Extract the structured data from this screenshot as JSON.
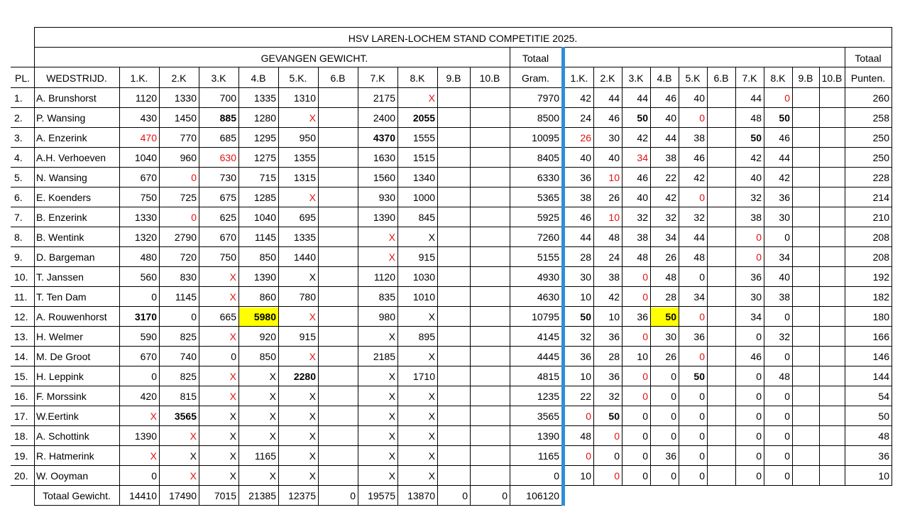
{
  "title": "HSV LAREN-LOCHEM STAND COMPETITIE 2025.",
  "headers": {
    "gevangen": "GEVANGEN GEWICHT.",
    "totaal_top_left": "Totaal",
    "totaal_top_right": "Totaal",
    "pl": "PL.",
    "wedstrijd": "WEDSTRIJD.",
    "weight_cols": [
      "1.K.",
      "2.K",
      "3.K",
      "4.B",
      "5.K.",
      "6.B",
      "7.K",
      "8.K",
      "9.B",
      "10.B"
    ],
    "gram": "Gram.",
    "point_cols": [
      "1.K.",
      "2.K",
      "3.K",
      "4.B",
      "5.K",
      "6.B",
      "7.K",
      "8.K",
      "9.B",
      "10.B"
    ],
    "punten": "Punten."
  },
  "rows": [
    {
      "pl": "1.",
      "name": "A. Brunshorst",
      "w": [
        "1120",
        "1330",
        "700",
        "1335",
        "1310",
        "",
        "2175",
        "X",
        "",
        ""
      ],
      "total": "7970",
      "p": [
        "42",
        "44",
        "44",
        "46",
        "40",
        "",
        "44",
        "0",
        "",
        ""
      ],
      "punten": "260"
    },
    {
      "pl": "2.",
      "name": "P. Wansing",
      "w": [
        "430",
        "1450",
        "885",
        "1280",
        "X",
        "",
        "2400",
        "2055",
        "",
        ""
      ],
      "total": "8500",
      "p": [
        "24",
        "46",
        "50",
        "40",
        "0",
        "",
        "48",
        "50",
        "",
        ""
      ],
      "punten": "258"
    },
    {
      "pl": "3.",
      "name": "A. Enzerink",
      "w": [
        "470",
        "770",
        "685",
        "1295",
        "950",
        "",
        "4370",
        "1555",
        "",
        ""
      ],
      "total": "10095",
      "p": [
        "26",
        "30",
        "42",
        "44",
        "38",
        "",
        "50",
        "46",
        "",
        ""
      ],
      "punten": "250"
    },
    {
      "pl": "4.",
      "name": "A.H. Verhoeven",
      "w": [
        "1040",
        "960",
        "630",
        "1275",
        "1355",
        "",
        "1630",
        "1515",
        "",
        ""
      ],
      "total": "8405",
      "p": [
        "40",
        "40",
        "34",
        "38",
        "46",
        "",
        "42",
        "44",
        "",
        ""
      ],
      "punten": "250"
    },
    {
      "pl": "5.",
      "name": "N. Wansing",
      "w": [
        "670",
        "0",
        "730",
        "715",
        "1315",
        "",
        "1560",
        "1340",
        "",
        ""
      ],
      "total": "6330",
      "p": [
        "36",
        "10",
        "46",
        "22",
        "42",
        "",
        "40",
        "42",
        "",
        ""
      ],
      "punten": "228"
    },
    {
      "pl": "6.",
      "name": "E. Koenders",
      "w": [
        "750",
        "725",
        "675",
        "1285",
        "X",
        "",
        "930",
        "1000",
        "",
        ""
      ],
      "total": "5365",
      "p": [
        "38",
        "26",
        "40",
        "42",
        "0",
        "",
        "32",
        "36",
        "",
        ""
      ],
      "punten": "214"
    },
    {
      "pl": "7.",
      "name": "B. Enzerink",
      "w": [
        "1330",
        "0",
        "625",
        "1040",
        "695",
        "",
        "1390",
        "845",
        "",
        ""
      ],
      "total": "5925",
      "p": [
        "46",
        "10",
        "32",
        "32",
        "32",
        "",
        "38",
        "30",
        "",
        ""
      ],
      "punten": "210"
    },
    {
      "pl": "8.",
      "name": "B. Wentink",
      "w": [
        "1320",
        "2790",
        "670",
        "1145",
        "1335",
        "",
        "X",
        "X",
        "",
        ""
      ],
      "total": "7260",
      "p": [
        "44",
        "48",
        "38",
        "34",
        "44",
        "",
        "0",
        "0",
        "",
        ""
      ],
      "punten": "208"
    },
    {
      "pl": "9.",
      "name": "D. Bargeman",
      "w": [
        "480",
        "720",
        "750",
        "850",
        "1440",
        "",
        "X",
        "915",
        "",
        ""
      ],
      "total": "5155",
      "p": [
        "28",
        "24",
        "48",
        "26",
        "48",
        "",
        "0",
        "34",
        "",
        ""
      ],
      "punten": "208"
    },
    {
      "pl": "10.",
      "name": "T. Janssen",
      "w": [
        "560",
        "830",
        "X",
        "1390",
        "X",
        "",
        "1120",
        "1030",
        "",
        ""
      ],
      "total": "4930",
      "p": [
        "30",
        "38",
        "0",
        "48",
        "0",
        "",
        "36",
        "40",
        "",
        ""
      ],
      "punten": "192"
    },
    {
      "pl": "11.",
      "name": "T. Ten Dam",
      "w": [
        "0",
        "1145",
        "X",
        "860",
        "780",
        "",
        "835",
        "1010",
        "",
        ""
      ],
      "total": "4630",
      "p": [
        "10",
        "42",
        "0",
        "28",
        "34",
        "",
        "30",
        "38",
        "",
        ""
      ],
      "punten": "182"
    },
    {
      "pl": "12.",
      "name": "A. Rouwenhorst",
      "w": [
        "3170",
        "0",
        "665",
        "5980",
        "X",
        "",
        "980",
        "X",
        "",
        ""
      ],
      "total": "10795",
      "p": [
        "50",
        "10",
        "36",
        "50",
        "0",
        "",
        "34",
        "0",
        "",
        ""
      ],
      "punten": "180"
    },
    {
      "pl": "13.",
      "name": "H. Welmer",
      "w": [
        "590",
        "825",
        "X",
        "920",
        "915",
        "",
        "X",
        "895",
        "",
        ""
      ],
      "total": "4145",
      "p": [
        "32",
        "36",
        "0",
        "30",
        "36",
        "",
        "0",
        "32",
        "",
        ""
      ],
      "punten": "166"
    },
    {
      "pl": "14.",
      "name": "M. De Groot",
      "w": [
        "670",
        "740",
        "0",
        "850",
        "X",
        "",
        "2185",
        "X",
        "",
        ""
      ],
      "total": "4445",
      "p": [
        "36",
        "28",
        "10",
        "26",
        "0",
        "",
        "46",
        "0",
        "",
        ""
      ],
      "punten": "146"
    },
    {
      "pl": "15.",
      "name": "H. Leppink",
      "w": [
        "0",
        "825",
        "X",
        "X",
        "2280",
        "",
        "X",
        "1710",
        "",
        ""
      ],
      "total": "4815",
      "p": [
        "10",
        "36",
        "0",
        "0",
        "50",
        "",
        "0",
        "48",
        "",
        ""
      ],
      "punten": "144"
    },
    {
      "pl": "16.",
      "name": "F. Morssink",
      "w": [
        "420",
        "815",
        "X",
        "X",
        "X",
        "",
        "X",
        "X",
        "",
        ""
      ],
      "total": "1235",
      "p": [
        "22",
        "32",
        "0",
        "0",
        "0",
        "",
        "0",
        "0",
        "",
        ""
      ],
      "punten": "54"
    },
    {
      "pl": "17.",
      "name": "W.Eertink",
      "w": [
        "X",
        "3565",
        "X",
        "X",
        "X",
        "",
        "X",
        "X",
        "",
        ""
      ],
      "total": "3565",
      "p": [
        "0",
        "50",
        "0",
        "0",
        "0",
        "",
        "0",
        "0",
        "",
        ""
      ],
      "punten": "50"
    },
    {
      "pl": "18.",
      "name": "A. Schottink",
      "w": [
        "1390",
        "X",
        "X",
        "X",
        "X",
        "",
        "X",
        "X",
        "",
        ""
      ],
      "total": "1390",
      "p": [
        "48",
        "0",
        "0",
        "0",
        "0",
        "",
        "0",
        "0",
        "",
        ""
      ],
      "punten": "48"
    },
    {
      "pl": "19.",
      "name": "R. Hatmerink",
      "w": [
        "X",
        "X",
        "X",
        "1165",
        "X",
        "",
        "X",
        "X",
        "",
        ""
      ],
      "total": "1165",
      "p": [
        "0",
        "0",
        "0",
        "36",
        "0",
        "",
        "0",
        "0",
        "",
        ""
      ],
      "punten": "36"
    },
    {
      "pl": "20.",
      "name": "W. Ooyman",
      "w": [
        "0",
        "X",
        "X",
        "X",
        "X",
        "",
        "X",
        "X",
        "",
        ""
      ],
      "total": "0",
      "p": [
        "10",
        "0",
        "0",
        "0",
        "0",
        "",
        "0",
        "0",
        "",
        ""
      ],
      "punten": "10"
    }
  ],
  "totals": {
    "label": "Totaal Gewicht.",
    "values": [
      "14410",
      "17490",
      "7015",
      "21385",
      "12375",
      "0",
      "19575",
      "13870",
      "0",
      "0"
    ],
    "grand": "106120"
  },
  "styles": {
    "red_color": "#e01010",
    "highlight_color": "#ffff00",
    "divider_color": "#2e8fd6",
    "red_weight": [
      [
        0,
        7
      ],
      [
        1,
        4
      ],
      [
        2,
        0
      ],
      [
        3,
        2
      ],
      [
        4,
        1
      ],
      [
        5,
        4
      ],
      [
        6,
        1
      ],
      [
        7,
        6
      ],
      [
        8,
        6
      ],
      [
        9,
        2
      ],
      [
        10,
        2
      ],
      [
        11,
        4
      ],
      [
        12,
        2
      ],
      [
        13,
        4
      ],
      [
        14,
        2
      ],
      [
        15,
        2
      ],
      [
        16,
        0
      ],
      [
        17,
        1
      ],
      [
        18,
        0
      ],
      [
        19,
        1
      ]
    ],
    "bold_weight": [
      [
        1,
        2
      ],
      [
        1,
        7
      ],
      [
        2,
        6
      ],
      [
        11,
        0
      ],
      [
        11,
        3
      ],
      [
        14,
        4
      ],
      [
        16,
        1
      ]
    ],
    "highlight_weight": [
      [
        11,
        3
      ]
    ],
    "red_points": [
      [
        0,
        7
      ],
      [
        1,
        4
      ],
      [
        2,
        0
      ],
      [
        3,
        2
      ],
      [
        4,
        1
      ],
      [
        5,
        4
      ],
      [
        6,
        1
      ],
      [
        7,
        6
      ],
      [
        8,
        6
      ],
      [
        9,
        2
      ],
      [
        10,
        2
      ],
      [
        11,
        4
      ],
      [
        12,
        2
      ],
      [
        13,
        4
      ],
      [
        14,
        2
      ],
      [
        15,
        2
      ],
      [
        16,
        0
      ],
      [
        17,
        1
      ],
      [
        18,
        0
      ],
      [
        19,
        1
      ]
    ],
    "bold_points": [
      [
        1,
        2
      ],
      [
        1,
        7
      ],
      [
        2,
        6
      ],
      [
        11,
        0
      ],
      [
        11,
        3
      ],
      [
        14,
        4
      ],
      [
        16,
        1
      ]
    ],
    "highlight_points": [
      [
        11,
        3
      ]
    ]
  }
}
